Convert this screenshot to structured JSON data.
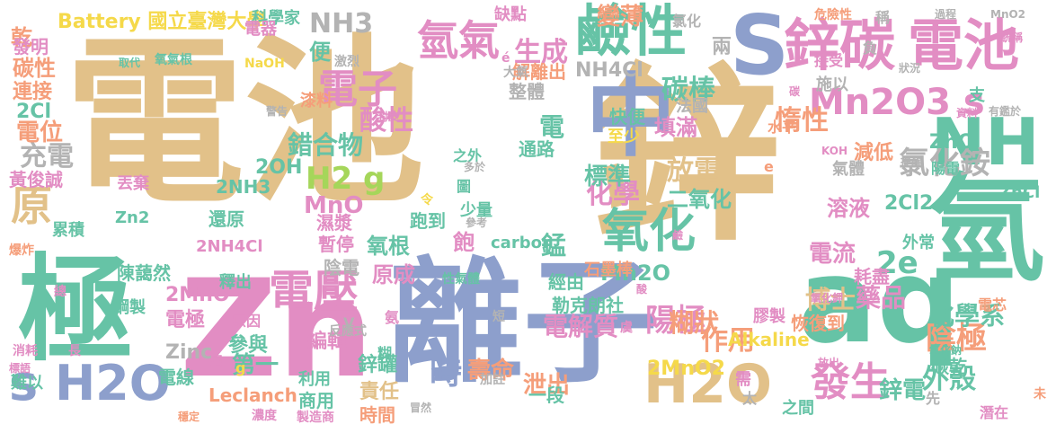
{
  "palette": {
    "tan": "#e2c189",
    "blue": "#8d9fcc",
    "teal": "#66c3a6",
    "pink": "#e28dc3",
    "orange": "#f59e7a",
    "green": "#a5d65a",
    "yellow": "#f5d94a",
    "gray": "#b3b3b3"
  },
  "words": [
    {
      "text": "電池",
      "color": "tan",
      "rotate": 0
    },
    {
      "text": "鋅",
      "color": "tan",
      "rotate": 0
    },
    {
      "text": "離子",
      "color": "blue",
      "rotate": 0
    },
    {
      "text": "aq",
      "color": "teal",
      "rotate": 0
    },
    {
      "text": "極",
      "color": "teal",
      "rotate": 0
    },
    {
      "text": "Zn",
      "color": "pink",
      "rotate": 0
    },
    {
      "text": "氫",
      "color": "teal",
      "rotate": 0
    },
    {
      "text": "中",
      "color": "blue",
      "rotate": 0
    },
    {
      "text": "S",
      "color": "blue",
      "rotate": 0
    },
    {
      "text": "鋅碳",
      "color": "pink",
      "rotate": 0
    },
    {
      "text": "電池",
      "color": "pink",
      "rotate": 0
    },
    {
      "text": "鹼性",
      "color": "teal",
      "rotate": 0
    },
    {
      "text": "氧化",
      "color": "teal",
      "rotate": 0
    },
    {
      "text": "NH",
      "color": "teal",
      "rotate": 0
    },
    {
      "text": "H2O",
      "color": "tan",
      "rotate": 0
    },
    {
      "text": "s H2O",
      "color": "blue",
      "rotate": 0
    },
    {
      "text": "Mn2O3 s",
      "color": "pink",
      "rotate": 0
    },
    {
      "text": "電壓",
      "color": "pink",
      "rotate": 0
    },
    {
      "text": "原",
      "color": "tan",
      "rotate": 0
    },
    {
      "text": "氫氣",
      "color": "pink",
      "rotate": 0
    },
    {
      "text": "電子",
      "color": "pink",
      "rotate": 0
    },
    {
      "text": "發生",
      "color": "pink",
      "rotate": 0
    },
    {
      "text": "氯化銨",
      "color": "gray",
      "rotate": 0
    },
    {
      "text": "陽極",
      "color": "pink",
      "rotate": 0
    },
    {
      "text": "陰極",
      "color": "orange",
      "rotate": 0
    },
    {
      "text": "外殼",
      "color": "teal",
      "rotate": 0
    },
    {
      "text": "作用",
      "color": "orange",
      "rotate": 0
    },
    {
      "text": "化學",
      "color": "pink",
      "rotate": 0
    },
    {
      "text": "放電",
      "color": "tan",
      "rotate": 0
    },
    {
      "text": "H2 g",
      "color": "green",
      "rotate": 0
    },
    {
      "text": "生成",
      "color": "pink",
      "rotate": 0
    },
    {
      "text": "酸性",
      "color": "pink",
      "rotate": 0
    },
    {
      "text": "碳棒",
      "color": "teal",
      "rotate": 0
    },
    {
      "text": "惰性",
      "color": "orange",
      "rotate": 0
    },
    {
      "text": "Battery 國立臺灣大學",
      "color": "yellow",
      "rotate": 0
    },
    {
      "text": "NH3",
      "color": "gray",
      "rotate": 0
    },
    {
      "text": "變薄",
      "color": "orange",
      "rotate": 0
    },
    {
      "text": "NH4Cl",
      "color": "gray",
      "rotate": 0
    },
    {
      "text": "2e",
      "color": "teal",
      "rotate": 0
    },
    {
      "text": "電流",
      "color": "pink",
      "rotate": 0
    },
    {
      "text": "藥品",
      "color": "pink",
      "rotate": 0
    },
    {
      "text": "博士",
      "color": "tan",
      "rotate": 0
    },
    {
      "text": "化學系",
      "color": "teal",
      "rotate": 0
    },
    {
      "text": "電解質",
      "color": "pink",
      "rotate": 0
    },
    {
      "text": "糊狀",
      "color": "orange",
      "rotate": 0
    },
    {
      "text": "壽命",
      "color": "orange",
      "rotate": 0
    },
    {
      "text": "鋅電",
      "color": "teal",
      "rotate": 0
    },
    {
      "text": "時",
      "color": "blue",
      "rotate": 0
    },
    {
      "text": "第一",
      "color": "teal",
      "rotate": 0
    },
    {
      "text": "2MnO2",
      "color": "yellow",
      "rotate": 0
    },
    {
      "text": "泄出",
      "color": "orange",
      "rotate": 0
    },
    {
      "text": "MnO",
      "color": "pink",
      "rotate": 0
    },
    {
      "text": "錯合物",
      "color": "teal",
      "rotate": 0
    },
    {
      "text": "2OH",
      "color": "teal",
      "rotate": 0
    },
    {
      "text": "充電",
      "color": "gray",
      "rotate": 0
    },
    {
      "text": "電位",
      "color": "orange",
      "rotate": 0
    },
    {
      "text": "2Cl",
      "color": "teal",
      "rotate": 0
    },
    {
      "text": "2Cl2",
      "color": "teal",
      "rotate": 0
    },
    {
      "text": "溶液",
      "color": "pink",
      "rotate": 0
    },
    {
      "text": "二氧化",
      "color": "teal",
      "rotate": 0
    },
    {
      "text": "標準",
      "color": "teal",
      "rotate": 0
    },
    {
      "text": "電",
      "color": "teal",
      "rotate": 0
    },
    {
      "text": "氧根",
      "color": "teal",
      "rotate": 0
    },
    {
      "text": "原成",
      "color": "pink",
      "rotate": 0
    },
    {
      "text": "Mn2O",
      "color": "teal",
      "rotate": 0
    },
    {
      "text": "2MnO",
      "color": "pink",
      "rotate": 0
    },
    {
      "text": "電極",
      "color": "pink",
      "rotate": 0
    },
    {
      "text": "Zinc",
      "color": "gray",
      "rotate": 0
    },
    {
      "text": "參與",
      "color": "teal",
      "rotate": 0
    },
    {
      "text": "編輯",
      "color": "pink",
      "rotate": 0
    },
    {
      "text": "鋅罐",
      "color": "teal",
      "rotate": 0
    },
    {
      "text": "責任",
      "color": "tan",
      "rotate": 0
    },
    {
      "text": "Leclanch",
      "color": "orange",
      "rotate": 0
    },
    {
      "text": "商用",
      "color": "teal",
      "rotate": 0
    },
    {
      "text": "利用",
      "color": "teal",
      "rotate": 0
    },
    {
      "text": "一段",
      "color": "teal",
      "rotate": 0
    },
    {
      "text": "時間",
      "color": "orange",
      "rotate": 0
    },
    {
      "text": "Alkaline",
      "color": "yellow",
      "rotate": 0
    },
    {
      "text": "勒克朗社",
      "color": "teal",
      "rotate": 0
    },
    {
      "text": "經由",
      "color": "teal",
      "rotate": 0
    },
    {
      "text": "膠製",
      "color": "pink",
      "rotate": 0
    },
    {
      "text": "石墨棒",
      "color": "orange",
      "rotate": 0
    },
    {
      "text": "陳藹然",
      "color": "teal",
      "rotate": 0
    },
    {
      "text": "釋出",
      "color": "teal",
      "rotate": 0
    },
    {
      "text": "陰電",
      "color": "gray",
      "rotate": 0
    },
    {
      "text": "暫停",
      "color": "pink",
      "rotate": 0
    },
    {
      "text": "濕漿",
      "color": "pink",
      "rotate": 0
    },
    {
      "text": "跑到",
      "color": "teal",
      "rotate": 0
    },
    {
      "text": "還原",
      "color": "teal",
      "rotate": 0
    },
    {
      "text": "2NH3",
      "color": "teal",
      "rotate": 0
    },
    {
      "text": "丟棄",
      "color": "pink",
      "rotate": 0
    },
    {
      "text": "Zn2",
      "color": "teal",
      "rotate": 0
    },
    {
      "text": "2NH4Cl",
      "color": "pink",
      "rotate": 0
    },
    {
      "text": "黃俊誠",
      "color": "pink",
      "rotate": 0
    },
    {
      "text": "碳性",
      "color": "orange",
      "rotate": 0
    },
    {
      "text": "連接",
      "color": "orange",
      "rotate": 0
    },
    {
      "text": "乾",
      "color": "orange",
      "rotate": 0
    },
    {
      "text": "發明",
      "color": "pink",
      "rotate": 0
    },
    {
      "text": "科學家",
      "color": "teal",
      "rotate": 0
    },
    {
      "text": "缺點",
      "color": "pink",
      "rotate": 0
    },
    {
      "text": "電器",
      "color": "pink",
      "rotate": 0
    },
    {
      "text": "便",
      "color": "teal",
      "rotate": 0
    },
    {
      "text": "整體",
      "color": "gray",
      "rotate": 0
    },
    {
      "text": "解離出",
      "color": "orange",
      "rotate": 0
    },
    {
      "text": "兩",
      "color": "gray",
      "rotate": 0
    },
    {
      "text": "法國",
      "color": "gray",
      "rotate": 0
    },
    {
      "text": "施以",
      "color": "gray",
      "rotate": 0
    },
    {
      "text": "快便",
      "color": "teal",
      "rotate": 0
    },
    {
      "text": "填滿",
      "color": "pink",
      "rotate": 0
    },
    {
      "text": "至少",
      "color": "yellow",
      "rotate": 0
    },
    {
      "text": "水平",
      "color": "orange",
      "rotate": 0
    },
    {
      "text": "ZnO",
      "color": "teal",
      "rotate": 0
    },
    {
      "text": "減低",
      "color": "orange",
      "rotate": 0
    },
    {
      "text": "陽電",
      "color": "teal",
      "rotate": 0
    },
    {
      "text": "氣體",
      "color": "gray",
      "rotate": 0
    },
    {
      "text": "ZnCl",
      "color": "teal",
      "rotate": 0
    },
    {
      "text": "外常",
      "color": "teal",
      "rotate": 0
    },
    {
      "text": "耗盡",
      "color": "pink",
      "rotate": 0
    },
    {
      "text": "碳乾",
      "color": "teal",
      "rotate": 0
    },
    {
      "text": "恢復到",
      "color": "orange",
      "rotate": 0
    },
    {
      "text": "carbon",
      "color": "teal",
      "rotate": 0
    },
    {
      "text": "錳",
      "color": "teal",
      "rotate": 0
    },
    {
      "text": "飽",
      "color": "pink",
      "rotate": 0
    },
    {
      "text": "少量",
      "color": "teal",
      "rotate": 0
    },
    {
      "text": "通路",
      "color": "teal",
      "rotate": 0
    },
    {
      "text": "之外",
      "color": "teal",
      "rotate": 0
    },
    {
      "text": "漆料",
      "color": "orange",
      "rotate": 0
    },
    {
      "text": "電線",
      "color": "teal",
      "rotate": 0
    },
    {
      "text": "難以",
      "color": "teal",
      "rotate": 0
    },
    {
      "text": "鋼製",
      "color": "teal",
      "rotate": 0
    },
    {
      "text": "累積",
      "color": "teal",
      "rotate": 0
    },
    {
      "text": "氯化",
      "color": "gray",
      "rotate": 0
    },
    {
      "text": "稱",
      "color": "gray",
      "rotate": 0
    },
    {
      "text": "負",
      "color": "gray",
      "rotate": 0
    },
    {
      "text": "接受",
      "color": "pink",
      "rotate": 0
    },
    {
      "text": "支",
      "color": "teal",
      "rotate": 0
    },
    {
      "text": "先",
      "color": "gray",
      "rotate": 0
    },
    {
      "text": "之間",
      "color": "teal",
      "rotate": 0
    },
    {
      "text": "潛在",
      "color": "pink",
      "rotate": 0
    },
    {
      "text": "原因",
      "color": "pink",
      "rotate": 0
    },
    {
      "text": "V",
      "color": "gray",
      "rotate": 0
    },
    {
      "text": "g",
      "color": "yellow",
      "rotate": 0
    },
    {
      "text": "e",
      "color": "orange",
      "rotate": 0
    },
    {
      "text": "é",
      "color": "pink",
      "rotate": 0
    },
    {
      "text": "大氣",
      "color": "gray",
      "rotate": 0
    },
    {
      "text": "激烈",
      "color": "gray",
      "rotate": 0
    },
    {
      "text": "氧氣根",
      "color": "teal",
      "rotate": 0
    },
    {
      "text": "取代",
      "color": "teal",
      "rotate": 0
    },
    {
      "text": "NaOH",
      "color": "yellow",
      "rotate": 0
    },
    {
      "text": "危險性",
      "color": "orange",
      "rotate": 0
    },
    {
      "text": "過程",
      "color": "gray",
      "rotate": 0
    },
    {
      "text": "MnO2",
      "color": "gray",
      "rotate": 0
    },
    {
      "text": "統稱",
      "color": "pink",
      "rotate": 0
    },
    {
      "text": "狀況",
      "color": "gray",
      "rotate": 0
    },
    {
      "text": "資料",
      "color": "pink",
      "rotate": 0
    },
    {
      "text": "有鑑於",
      "color": "gray",
      "rotate": 0
    },
    {
      "text": "KOH",
      "color": "pink",
      "rotate": 0
    },
    {
      "text": "提醒",
      "color": "gray",
      "rotate": 0
    },
    {
      "text": "氧化鉀",
      "color": "pink",
      "rotate": 0
    },
    {
      "text": "氧化鈉",
      "color": "teal",
      "rotate": 0
    },
    {
      "text": "放出",
      "color": "pink",
      "rotate": 0
    },
    {
      "text": "電芯",
      "color": "orange",
      "rotate": 0
    },
    {
      "text": "未",
      "color": "orange",
      "rotate": 0
    },
    {
      "text": "需",
      "color": "pink",
      "rotate": 0
    },
    {
      "text": "太",
      "color": "gray",
      "rotate": 0
    },
    {
      "text": "加註",
      "color": "gray",
      "rotate": 0
    },
    {
      "text": "冒然",
      "color": "gray",
      "rotate": 0
    },
    {
      "text": "製造商",
      "color": "pink",
      "rotate": 0
    },
    {
      "text": "濃度",
      "color": "pink",
      "rotate": 0
    },
    {
      "text": "穩定",
      "color": "orange",
      "rotate": 0
    },
    {
      "text": "標語",
      "color": "pink",
      "rotate": 0
    },
    {
      "text": "消耗",
      "color": "pink",
      "rotate": 0
    },
    {
      "text": "長",
      "color": "pink",
      "rotate": 0
    },
    {
      "text": "總",
      "color": "pink",
      "rotate": 0
    },
    {
      "text": "爆炸",
      "color": "orange",
      "rotate": 0
    },
    {
      "text": "層",
      "color": "pink",
      "rotate": 0
    },
    {
      "text": "反應式",
      "color": "gray",
      "rotate": 0
    },
    {
      "text": "氨",
      "color": "pink",
      "rotate": 0
    },
    {
      "text": "糊",
      "color": "teal",
      "rotate": 0
    },
    {
      "text": "令",
      "color": "yellow",
      "rotate": 0
    },
    {
      "text": "圖",
      "color": "teal",
      "rotate": 0
    },
    {
      "text": "多於",
      "color": "gray",
      "rotate": 0
    },
    {
      "text": "參考",
      "color": "gray",
      "rotate": 0
    },
    {
      "text": "短",
      "color": "gray",
      "rotate": 0
    },
    {
      "text": "性氣體",
      "color": "teal",
      "rotate": 0
    },
    {
      "text": "酸",
      "color": "pink",
      "rotate": 0
    },
    {
      "text": "虞",
      "color": "pink",
      "rotate": 0
    },
    {
      "text": "警告",
      "color": "gray",
      "rotate": 0
    },
    {
      "text": "封皮",
      "color": "pink",
      "rotate": 0
    },
    {
      "text": "碳",
      "color": "pink",
      "rotate": 0
    },
    {
      "text": "鹼",
      "color": "pink",
      "rotate": 0
    }
  ]
}
